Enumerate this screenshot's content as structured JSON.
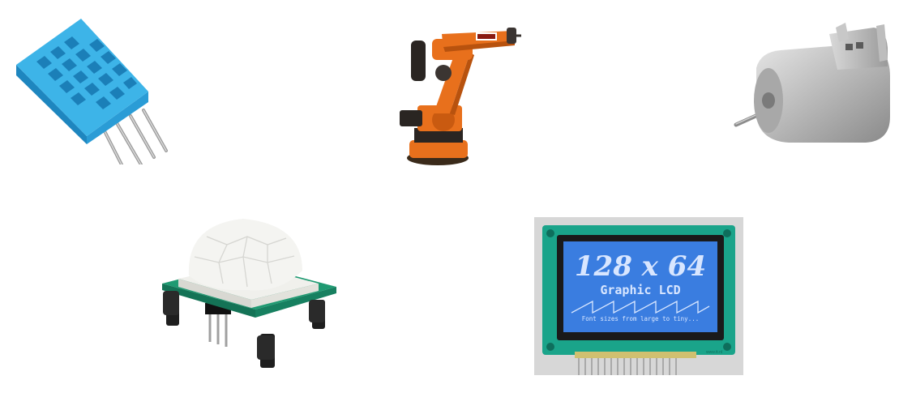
{
  "images": [
    {
      "name": "dht11-sensor"
    },
    {
      "name": "industrial-robot-arm"
    },
    {
      "name": "dc-motor"
    },
    {
      "name": "pir-motion-sensor"
    },
    {
      "name": "graphic-lcd-module"
    }
  ],
  "lcd": {
    "title": "128 x 64",
    "subtitle": "Graphic LCD",
    "caption": "Font sizes from large to tiny...",
    "brand_mark": "www.tt.nl"
  },
  "colors": {
    "dht_blue": "#3db4e8",
    "robot_orange": "#e8701c",
    "lcd_blue": "#3a7de0",
    "pcb_green": "#1f9a72"
  }
}
